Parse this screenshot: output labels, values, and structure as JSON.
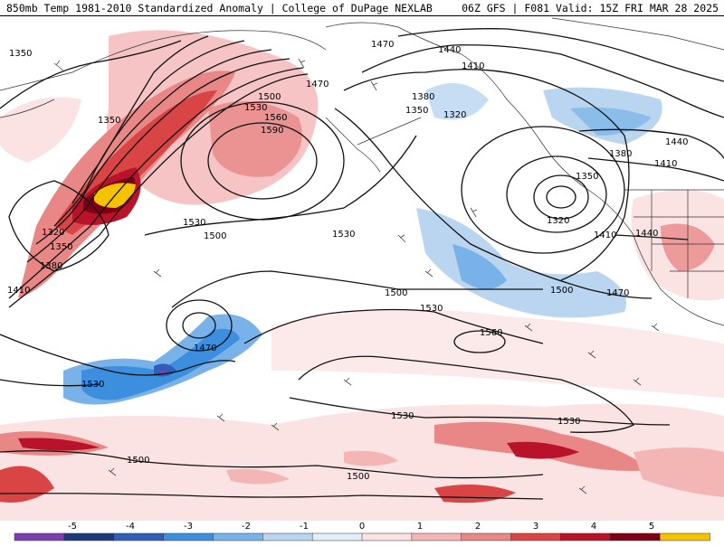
{
  "header": {
    "title": "850mb Temp 1981-2010 Standardized Anomaly | College of DuPage NEXLAB",
    "run_info": "06Z GFS | F081 Valid: 15Z FRI MAR 28 2025"
  },
  "colorbar": {
    "labels": [
      "-5",
      "-4",
      "-3",
      "-2",
      "-1",
      "0",
      "1",
      "2",
      "3",
      "4",
      "5"
    ],
    "colors": [
      "#7a3fb0",
      "#1f3a7a",
      "#2f5fb8",
      "#3c8ede",
      "#78b2e8",
      "#b9d5f0",
      "#e2edf8",
      "#fbe3e3",
      "#f4b5b5",
      "#e98787",
      "#d94545",
      "#b8132a",
      "#7f0016",
      "#f5c200"
    ]
  },
  "contour_labels": [
    "1350",
    "1350",
    "1320",
    "1350",
    "1380",
    "1410",
    "1470",
    "1500",
    "1530",
    "1560",
    "1590",
    "1530",
    "1500",
    "1530",
    "1470",
    "1440",
    "1410",
    "1380",
    "1350",
    "1320",
    "1320",
    "1350",
    "1380",
    "1410",
    "1440",
    "1410",
    "1440",
    "1470",
    "1500",
    "1500",
    "1530",
    "1560",
    "1470",
    "1530",
    "1530",
    "1530",
    "1500",
    "1500"
  ]
}
